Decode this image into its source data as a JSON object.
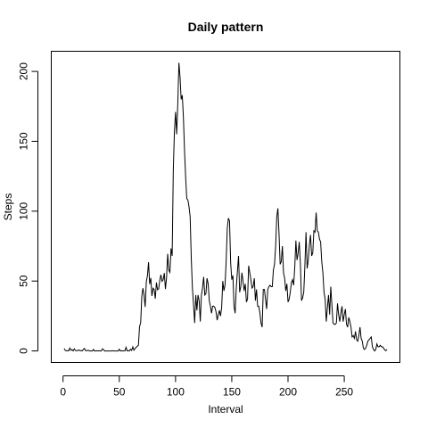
{
  "chart_data": {
    "type": "line",
    "title": "Daily pattern",
    "x_label": "Interval",
    "y_label": "Steps",
    "x": [
      1,
      2,
      3,
      4,
      5,
      6,
      7,
      8,
      9,
      10,
      11,
      12,
      13,
      14,
      15,
      16,
      17,
      18,
      19,
      20,
      21,
      22,
      23,
      24,
      25,
      26,
      27,
      28,
      29,
      30,
      31,
      32,
      33,
      34,
      35,
      36,
      37,
      38,
      39,
      40,
      41,
      42,
      43,
      44,
      45,
      46,
      47,
      48,
      49,
      50,
      51,
      52,
      53,
      54,
      55,
      56,
      57,
      58,
      59,
      60,
      61,
      62,
      63,
      64,
      65,
      66,
      67,
      68,
      69,
      70,
      71,
      72,
      73,
      74,
      75,
      76,
      77,
      78,
      79,
      80,
      81,
      82,
      83,
      84,
      85,
      86,
      87,
      88,
      89,
      90,
      91,
      92,
      93,
      94,
      95,
      96,
      97,
      98,
      99,
      100,
      101,
      102,
      103,
      104,
      105,
      106,
      107,
      108,
      109,
      110,
      111,
      112,
      113,
      114,
      115,
      116,
      117,
      118,
      119,
      120,
      121,
      122,
      123,
      124,
      125,
      126,
      127,
      128,
      129,
      130,
      131,
      132,
      133,
      134,
      135,
      136,
      137,
      138,
      139,
      140,
      141,
      142,
      143,
      144,
      145,
      146,
      147,
      148,
      149,
      150,
      151,
      152,
      153,
      154,
      155,
      156,
      157,
      158,
      159,
      160,
      161,
      162,
      163,
      164,
      165,
      166,
      167,
      168,
      169,
      170,
      171,
      172,
      173,
      174,
      175,
      176,
      177,
      178,
      179,
      180,
      181,
      182,
      183,
      184,
      185,
      186,
      187,
      188,
      189,
      190,
      191,
      192,
      193,
      194,
      195,
      196,
      197,
      198,
      199,
      200,
      201,
      202,
      203,
      204,
      205,
      206,
      207,
      208,
      209,
      210,
      211,
      212,
      213,
      214,
      215,
      216,
      217,
      218,
      219,
      220,
      221,
      222,
      223,
      224,
      225,
      226,
      227,
      228,
      229,
      230,
      231,
      232,
      233,
      234,
      235,
      236,
      237,
      238,
      239,
      240,
      241,
      242,
      243,
      244,
      245,
      246,
      247,
      248,
      249,
      250,
      251,
      252,
      253,
      254,
      255,
      256,
      257,
      258,
      259,
      260,
      261,
      262,
      263,
      264,
      265,
      266,
      267,
      268,
      269,
      270,
      271,
      272,
      273,
      274,
      275,
      276,
      277,
      278,
      279,
      280,
      281,
      282,
      283,
      284,
      285,
      286,
      287,
      288
    ],
    "series": [
      {
        "name": "Steps",
        "color": "#000000",
        "values": [
          1.7,
          0.3,
          0.1,
          0.2,
          0.1,
          2.1,
          0.5,
          0.9,
          0,
          1.5,
          0.3,
          0.1,
          0.3,
          0.7,
          0.2,
          0.3,
          0,
          1.1,
          1.8,
          0.2,
          0.2,
          0.4,
          0.3,
          0,
          0,
          0,
          1.1,
          0,
          0,
          0.1,
          0,
          0.2,
          0,
          0,
          1.5,
          0.9,
          0,
          0,
          0,
          0,
          0,
          0,
          0,
          0.2,
          0,
          0,
          0,
          0,
          0,
          1.2,
          0,
          0.1,
          0,
          0.2,
          0,
          2.6,
          0,
          0.2,
          0,
          1.3,
          0.4,
          2.9,
          0.5,
          1.7,
          2.6,
          3.3,
          4,
          17.5,
          20,
          39,
          44.9,
          40,
          31.5,
          49.3,
          53.8,
          63.5,
          47.8,
          52.2,
          39.3,
          44.9,
          44,
          37.4,
          49,
          43.8,
          44.4,
          50.5,
          54.5,
          49.9,
          51,
          55.7,
          44.3,
          52.3,
          69.5,
          57.8,
          56.2,
          73.4,
          68,
          129,
          157,
          171,
          155,
          177,
          206.2,
          196,
          180,
          183,
          167,
          143,
          124,
          109,
          108,
          103,
          96,
          66,
          45,
          33,
          20,
          40,
          29,
          40,
          36,
          21,
          40,
          45,
          53,
          40,
          41,
          52,
          48,
          36,
          32,
          27,
          32,
          32,
          31,
          28,
          22,
          26,
          29,
          25,
          31,
          50,
          43,
          47,
          64,
          88,
          95,
          93,
          63,
          51,
          54,
          32,
          27,
          45,
          57,
          68,
          42,
          46,
          56,
          50,
          43,
          48,
          35,
          37,
          61,
          56,
          51,
          45,
          46,
          52,
          36,
          44,
          32,
          32,
          27,
          20,
          17,
          44,
          44,
          37,
          30,
          44,
          46,
          47,
          46,
          46,
          58,
          62,
          75,
          96,
          102,
          84,
          62,
          64,
          75,
          56,
          52,
          43,
          48,
          35,
          37,
          42,
          49,
          51,
          47,
          60,
          79,
          65,
          70,
          78,
          62,
          36,
          38,
          42,
          61,
          85,
          59,
          65,
          76,
          83,
          68,
          70,
          86,
          85,
          99,
          86,
          85,
          80,
          78,
          64,
          56,
          42,
          37,
          21,
          31,
          40,
          26,
          46,
          33,
          20,
          19,
          19,
          20,
          34,
          26,
          21,
          27,
          32,
          21,
          26,
          30,
          19,
          17,
          24,
          21,
          17,
          10,
          11,
          9,
          14,
          8,
          7,
          11,
          17,
          9,
          7,
          2,
          1,
          2,
          4,
          7,
          8,
          9,
          10,
          3,
          1,
          0,
          1,
          5,
          3,
          3,
          4,
          3,
          3,
          2,
          0.6,
          0.2,
          1.1
        ]
      }
    ],
    "xlim": [
      -10.48,
      299.48
    ],
    "ylim": [
      -8.25,
      214.42
    ],
    "xticks": [
      0,
      50,
      100,
      150,
      200,
      250
    ],
    "yticks": [
      0,
      50,
      100,
      150,
      200
    ]
  }
}
